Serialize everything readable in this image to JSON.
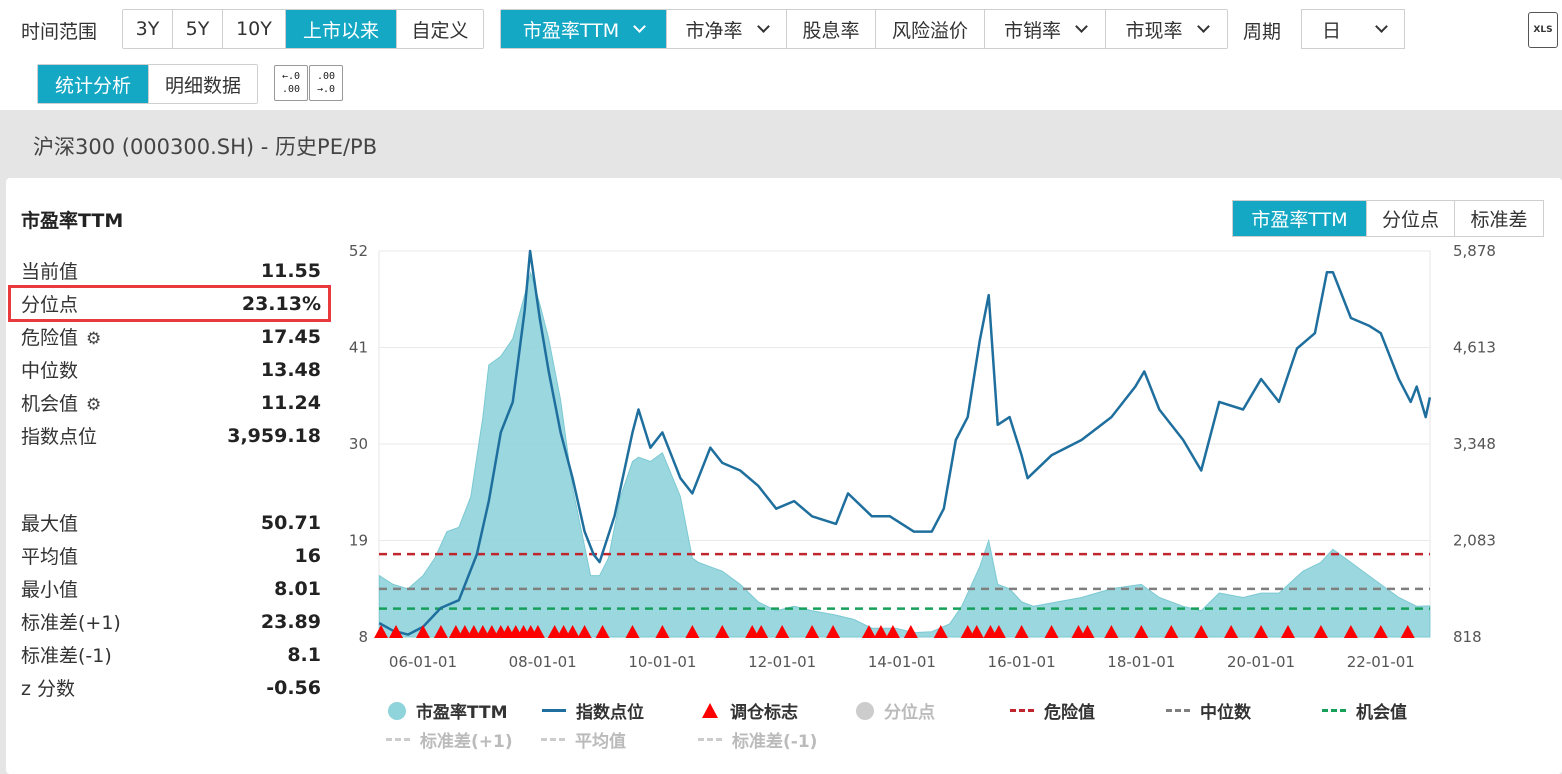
{
  "toolbar": {
    "time_range_label": "时间范围",
    "time_ranges": [
      "3Y",
      "5Y",
      "10Y",
      "上市以来",
      "自定义"
    ],
    "time_range_active": "上市以来",
    "metrics": [
      "市盈率TTM",
      "市净率",
      "股息率",
      "风险溢价",
      "市销率",
      "市现率"
    ],
    "metric_active": "市盈率TTM",
    "period_label": "周期",
    "period_value": "日",
    "xls_label": "XLS",
    "view_tabs": [
      "统计分析",
      "明细数据"
    ],
    "view_active": "统计分析"
  },
  "section_title": "沪深300 (000300.SH) - 历史PE/PB",
  "stats": {
    "title": "市盈率TTM",
    "rows_top": [
      {
        "label": "当前值",
        "value": "11.55"
      },
      {
        "label": "分位点",
        "value": "23.13%"
      },
      {
        "label": "危险值",
        "value": "17.45"
      },
      {
        "label": "中位数",
        "value": "13.48"
      },
      {
        "label": "机会值",
        "value": "11.24"
      },
      {
        "label": "指数点位",
        "value": "3,959.18"
      }
    ],
    "rows_bottom": [
      {
        "label": "最大值",
        "value": "50.71"
      },
      {
        "label": "平均值",
        "value": "16"
      },
      {
        "label": "最小值",
        "value": "8.01"
      },
      {
        "label": "标准差(+1)",
        "value": "23.89"
      },
      {
        "label": "标准差(-1)",
        "value": "8.1"
      },
      {
        "label": "z 分数",
        "value": "-0.56"
      }
    ]
  },
  "chart_tabs": [
    "市盈率TTM",
    "分位点",
    "标准差"
  ],
  "chart_tab_active": "市盈率TTM",
  "colors": {
    "accent": "#14a8c5",
    "pe_area": "#8fd3db",
    "index_line": "#1f6f9e",
    "danger": "#c0262d",
    "median": "#7f7f7f",
    "opportunity": "#16a05a",
    "marker": "#ff0000",
    "highlight": "#e8393c"
  },
  "chart_data": {
    "type": "area",
    "title": "",
    "x_tick_labels": [
      "06-01-01",
      "08-01-01",
      "10-01-01",
      "12-01-01",
      "14-01-01",
      "16-01-01",
      "18-01-01",
      "20-01-01",
      "22-01-01"
    ],
    "x_range": [
      "2005-04-08",
      "2022-10-28"
    ],
    "y_left": {
      "label": "",
      "ticks": [
        8,
        19,
        30,
        41,
        52
      ],
      "range": [
        8,
        52
      ]
    },
    "y_right": {
      "label": "",
      "ticks": [
        "818",
        "2,083",
        "3,348",
        "4,613",
        "5,878"
      ],
      "range": [
        818,
        5878
      ]
    },
    "reference_lines": [
      {
        "name": "危险值",
        "value": 17.45,
        "style": "dashed"
      },
      {
        "name": "中位数",
        "value": 13.48,
        "style": "dashed"
      },
      {
        "name": "机会值",
        "value": 11.24,
        "style": "dashed"
      }
    ],
    "series": [
      {
        "name": "市盈率TTM",
        "axis": "left",
        "kind": "area",
        "x": [
          2005.27,
          2005.5,
          2005.75,
          2006.0,
          2006.2,
          2006.4,
          2006.6,
          2006.8,
          2007.0,
          2007.1,
          2007.3,
          2007.5,
          2007.7,
          2007.8,
          2007.95,
          2008.1,
          2008.3,
          2008.5,
          2008.65,
          2008.8,
          2008.95,
          2009.1,
          2009.3,
          2009.5,
          2009.6,
          2009.8,
          2010.0,
          2010.3,
          2010.5,
          2010.6,
          2010.8,
          2011.0,
          2011.3,
          2011.6,
          2011.9,
          2012.2,
          2012.5,
          2012.9,
          2013.2,
          2013.5,
          2013.9,
          2014.2,
          2014.5,
          2014.8,
          2015.0,
          2015.3,
          2015.45,
          2015.6,
          2015.8,
          2016.0,
          2016.2,
          2016.6,
          2017.0,
          2017.5,
          2018.0,
          2018.3,
          2018.7,
          2019.0,
          2019.3,
          2019.7,
          2020.0,
          2020.3,
          2020.7,
          2021.0,
          2021.2,
          2021.5,
          2021.8,
          2022.0,
          2022.3,
          2022.6,
          2022.82
        ],
        "y": [
          15.0,
          14.0,
          13.5,
          15.0,
          17.0,
          20.0,
          20.5,
          24.0,
          33.0,
          39.0,
          40.0,
          42.0,
          47.0,
          49.5,
          46.0,
          42.0,
          35.0,
          25.0,
          20.0,
          15.0,
          15.0,
          17.0,
          24.0,
          28.0,
          28.5,
          28.0,
          29.0,
          24.0,
          17.0,
          16.5,
          16.0,
          15.5,
          14.0,
          12.0,
          11.0,
          11.5,
          11.0,
          10.5,
          10.0,
          9.0,
          9.0,
          8.5,
          8.6,
          9.5,
          11.5,
          16.0,
          19.0,
          14.0,
          13.5,
          12.0,
          11.5,
          12.0,
          12.5,
          13.5,
          14.0,
          12.5,
          11.5,
          11.0,
          13.0,
          12.5,
          13.0,
          13.0,
          15.5,
          16.5,
          18.0,
          16.5,
          15.0,
          14.0,
          12.5,
          11.5,
          11.55
        ]
      },
      {
        "name": "指数点位",
        "axis": "right",
        "kind": "line",
        "x": [
          2005.27,
          2005.5,
          2005.75,
          2006.0,
          2006.3,
          2006.6,
          2006.9,
          2007.1,
          2007.3,
          2007.5,
          2007.7,
          2007.79,
          2007.95,
          2008.1,
          2008.3,
          2008.5,
          2008.7,
          2008.85,
          2008.95,
          2009.2,
          2009.5,
          2009.6,
          2009.8,
          2010.0,
          2010.3,
          2010.5,
          2010.8,
          2011.0,
          2011.3,
          2011.6,
          2011.9,
          2012.2,
          2012.5,
          2012.9,
          2013.1,
          2013.5,
          2013.8,
          2014.2,
          2014.5,
          2014.7,
          2014.9,
          2015.1,
          2015.3,
          2015.45,
          2015.6,
          2015.8,
          2016.0,
          2016.1,
          2016.5,
          2017.0,
          2017.5,
          2017.9,
          2018.05,
          2018.3,
          2018.7,
          2019.0,
          2019.3,
          2019.7,
          2020.0,
          2020.3,
          2020.6,
          2020.9,
          2021.1,
          2021.2,
          2021.5,
          2021.8,
          2022.0,
          2022.3,
          2022.5,
          2022.6,
          2022.75,
          2022.82
        ],
        "y": [
          1000,
          900,
          850,
          950,
          1200,
          1300,
          1900,
          2600,
          3500,
          3900,
          5100,
          5878,
          5000,
          4300,
          3500,
          2900,
          2200,
          1900,
          1800,
          2400,
          3500,
          3800,
          3300,
          3500,
          2900,
          2700,
          3300,
          3100,
          3000,
          2800,
          2500,
          2600,
          2400,
          2300,
          2700,
          2400,
          2400,
          2200,
          2200,
          2500,
          3400,
          3700,
          4700,
          5300,
          3600,
          3700,
          3200,
          2900,
          3200,
          3400,
          3700,
          4100,
          4300,
          3800,
          3400,
          3000,
          3900,
          3800,
          4200,
          3900,
          4600,
          4800,
          5600,
          5600,
          5000,
          4900,
          4800,
          4200,
          3900,
          4100,
          3700,
          3959
        ]
      }
    ],
    "markers": {
      "name": "调仓标志",
      "shape": "triangle",
      "x": [
        2005.3,
        2005.55,
        2006.0,
        2006.3,
        2006.55,
        2006.7,
        2006.85,
        2007.0,
        2007.15,
        2007.3,
        2007.42,
        2007.55,
        2007.68,
        2007.8,
        2007.92,
        2008.2,
        2008.35,
        2008.5,
        2008.7,
        2009.0,
        2009.5,
        2010.0,
        2010.5,
        2011.0,
        2011.5,
        2011.65,
        2012.0,
        2012.5,
        2012.85,
        2013.45,
        2013.65,
        2013.85,
        2014.15,
        2014.65,
        2015.1,
        2015.25,
        2015.48,
        2015.62,
        2016.0,
        2016.5,
        2016.95,
        2017.1,
        2017.5,
        2018.0,
        2018.5,
        2019.0,
        2019.5,
        2020.0,
        2020.45,
        2021.0,
        2021.5,
        2022.0,
        2022.45
      ]
    },
    "legend": [
      {
        "name": "市盈率TTM",
        "symbol": "dot",
        "active": true
      },
      {
        "name": "指数点位",
        "symbol": "line",
        "active": true
      },
      {
        "name": "调仓标志",
        "symbol": "triangle",
        "active": true
      },
      {
        "name": "分位点",
        "symbol": "dot",
        "active": false
      },
      {
        "name": "危险值",
        "symbol": "dash",
        "active": true
      },
      {
        "name": "中位数",
        "symbol": "dash",
        "active": true
      },
      {
        "name": "机会值",
        "symbol": "dash",
        "active": true
      },
      {
        "name": "标准差(+1)",
        "symbol": "dash",
        "active": false
      },
      {
        "name": "平均值",
        "symbol": "dash",
        "active": false
      },
      {
        "name": "标准差(-1)",
        "symbol": "dash",
        "active": false
      }
    ]
  }
}
